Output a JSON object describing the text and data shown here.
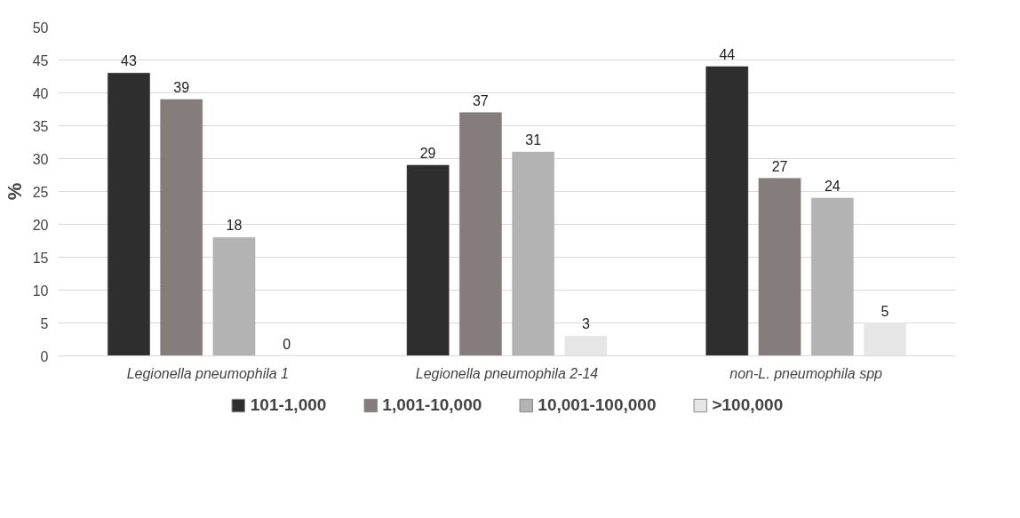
{
  "chart_data": {
    "type": "bar",
    "ylabel": "%",
    "categories": [
      "Legionella pneumophila 1",
      "Legionella pneumophila 2-14",
      "non-L. pneumophila spp"
    ],
    "series": [
      {
        "name": "101-1,000",
        "color": "#2e2e2e",
        "values": [
          43,
          29,
          44
        ]
      },
      {
        "name": "1,001-10,000",
        "color": "#857c7c",
        "values": [
          39,
          37,
          27
        ]
      },
      {
        "name": "10,001-100,000",
        "color": "#b3b3b3",
        "values": [
          18,
          31,
          24
        ]
      },
      {
        "name": ">100,000",
        "color": "#e6e6e6",
        "values": [
          0,
          3,
          5
        ]
      }
    ],
    "ylim": [
      0,
      50
    ],
    "yticks": [
      0,
      5,
      10,
      15,
      20,
      25,
      30,
      35,
      40,
      45,
      50
    ],
    "grid": "y",
    "legend": "bottom",
    "data_labels": true
  }
}
